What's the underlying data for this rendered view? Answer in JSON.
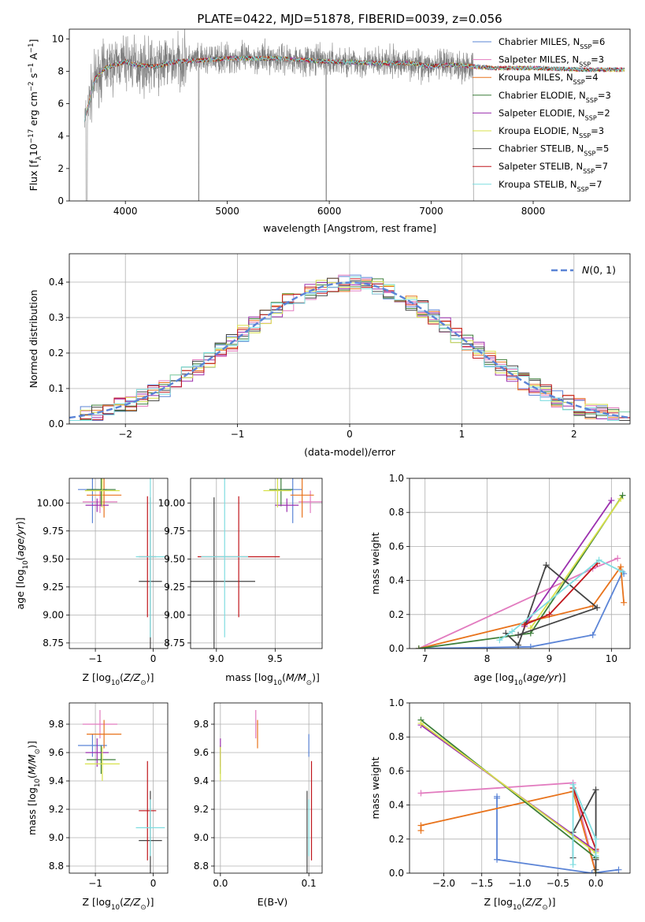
{
  "figure": {
    "title": "PLATE=0422, MJD=51878, FIBERID=0039, z=0.056"
  },
  "colors": {
    "Chabrier MILES": "#5b84d6",
    "Salpeter MILES": "#e27bbf",
    "Kroupa MILES": "#e8731c",
    "Chabrier ELODIE": "#3d7f3a",
    "Salpeter ELODIE": "#9b2fae",
    "Kroupa ELODIE": "#d8e14a",
    "Chabrier STELIB": "#444444",
    "Salpeter STELIB": "#c0161c",
    "Kroupa STELIB": "#7fdde0",
    "data": "#7f7f7f",
    "gaussian": "#5b84d6"
  },
  "chart_data": [
    {
      "id": "spectrum",
      "type": "line",
      "xlabel": "wavelength [Angstrom, rest frame]",
      "ylabel": "Flux [f_λ10^-17 erg cm^-2 s^-1 A^-1]",
      "xlim": [
        3450,
        8950
      ],
      "ylim": [
        0,
        10.6
      ],
      "xticks": [
        4000,
        5000,
        6000,
        7000,
        8000
      ],
      "yticks": [
        0,
        2,
        4,
        6,
        8,
        10
      ],
      "legend": "top-right",
      "legend_entries": [
        {
          "model": "Chabrier MILES",
          "nssp": "6"
        },
        {
          "model": "Salpeter MILES",
          "nssp": "3"
        },
        {
          "model": "Kroupa MILES",
          "nssp": "4"
        },
        {
          "model": "Chabrier ELODIE",
          "nssp": "3"
        },
        {
          "model": "Salpeter ELODIE",
          "nssp": "2"
        },
        {
          "model": "Kroupa ELODIE",
          "nssp": "3"
        },
        {
          "model": "Chabrier STELIB",
          "nssp": "5"
        },
        {
          "model": "Salpeter STELIB",
          "nssp": "7"
        },
        {
          "model": "Kroupa STELIB",
          "nssp": "7"
        }
      ],
      "continuum": [
        [
          3600,
          5.0
        ],
        [
          3700,
          7.5
        ],
        [
          3800,
          8.2
        ],
        [
          3900,
          8.4
        ],
        [
          4000,
          8.6
        ],
        [
          4100,
          8.4
        ],
        [
          4300,
          8.3
        ],
        [
          4500,
          8.6
        ],
        [
          4800,
          8.7
        ],
        [
          5000,
          8.8
        ],
        [
          5500,
          8.8
        ],
        [
          6000,
          8.6
        ],
        [
          6500,
          8.5
        ],
        [
          6800,
          8.5
        ],
        [
          7000,
          8.3
        ],
        [
          7200,
          8.4
        ],
        [
          7400,
          8.3
        ],
        [
          7600,
          8.2
        ],
        [
          8000,
          8.2
        ],
        [
          8500,
          8.1
        ]
      ],
      "data_range": [
        3600,
        7410
      ]
    },
    {
      "id": "residuals",
      "type": "histogram",
      "xlabel": "(data-model)/error",
      "ylabel": "Normed distribution",
      "xlim": [
        -2.5,
        2.5
      ],
      "ylim": [
        0,
        0.48
      ],
      "xticks": [
        -2,
        -1,
        0,
        1,
        2
      ],
      "yticks": [
        0.0,
        0.1,
        0.2,
        0.3,
        0.4
      ],
      "legend": "top-right",
      "reference_curve": "N(0,1)",
      "bin_width": 0.1
    },
    {
      "id": "age_vs_Z",
      "type": "errorbar",
      "xlabel": "Z [log10(Z/Z☉)]",
      "ylabel": "age [log10(age/yr)]",
      "xlim": [
        -1.45,
        0.25
      ],
      "ylim": [
        8.7,
        10.22
      ],
      "xticks": [
        -1,
        0
      ],
      "yticks": [
        8.75,
        9.0,
        9.25,
        9.5,
        9.75,
        10.0
      ],
      "points": [
        {
          "model": "Chabrier MILES",
          "x": -1.05,
          "xe": 0.25,
          "y": 10.12,
          "ye": 0.3
        },
        {
          "model": "Salpeter MILES",
          "x": -0.92,
          "xe": 0.3,
          "y": 10.01,
          "ye": 0.1
        },
        {
          "model": "Kroupa MILES",
          "x": -0.85,
          "xe": 0.3,
          "y": 10.07,
          "ye": 0.2
        },
        {
          "model": "Chabrier ELODIE",
          "x": -0.9,
          "xe": 0.25,
          "y": 10.12,
          "ye": 0.15
        },
        {
          "model": "Salpeter ELODIE",
          "x": -0.97,
          "xe": 0.2,
          "y": 9.98,
          "ye": 0.06
        },
        {
          "model": "Kroupa ELODIE",
          "x": -0.88,
          "xe": 0.3,
          "y": 10.11,
          "ye": 0.15
        },
        {
          "model": "Chabrier STELIB",
          "x": -0.05,
          "xe": 0.2,
          "y": 9.3,
          "ye": 0.75
        },
        {
          "model": "Salpeter STELIB",
          "x": -0.1,
          "xe": 0.15,
          "y": 9.52,
          "ye": 0.54
        },
        {
          "model": "Kroupa STELIB",
          "x": -0.05,
          "xe": 0.25,
          "y": 9.52,
          "ye": 0.72
        }
      ]
    },
    {
      "id": "age_vs_mass",
      "type": "errorbar",
      "xlabel": "mass [log10(M/M☉)]",
      "ylabel": "",
      "xlim": [
        8.78,
        9.9
      ],
      "ylim": [
        8.7,
        10.22
      ],
      "xticks": [
        9.0,
        9.5
      ],
      "yticks": [
        8.75,
        9.0,
        9.25,
        9.5,
        9.75,
        10.0
      ],
      "points": [
        {
          "model": "Chabrier MILES",
          "x": 9.65,
          "xe": 0.08,
          "y": 10.12,
          "ye": 0.3
        },
        {
          "model": "Salpeter MILES",
          "x": 9.8,
          "xe": 0.1,
          "y": 10.01,
          "ye": 0.1
        },
        {
          "model": "Kroupa MILES",
          "x": 9.73,
          "xe": 0.1,
          "y": 10.07,
          "ye": 0.2
        },
        {
          "model": "Chabrier ELODIE",
          "x": 9.55,
          "xe": 0.1,
          "y": 10.12,
          "ye": 0.15
        },
        {
          "model": "Salpeter ELODIE",
          "x": 9.6,
          "xe": 0.1,
          "y": 9.98,
          "ye": 0.06
        },
        {
          "model": "Kroupa ELODIE",
          "x": 9.52,
          "xe": 0.12,
          "y": 10.11,
          "ye": 0.15
        },
        {
          "model": "Chabrier STELIB",
          "x": 8.98,
          "xe": 0.35,
          "y": 9.3,
          "ye": 0.75
        },
        {
          "model": "Salpeter STELIB",
          "x": 9.19,
          "xe": 0.35,
          "y": 9.52,
          "ye": 0.54
        },
        {
          "model": "Kroupa STELIB",
          "x": 9.07,
          "xe": 0.2,
          "y": 9.52,
          "ye": 0.72
        }
      ]
    },
    {
      "id": "weight_vs_age",
      "type": "line",
      "xlabel": "age [log10(age/yr)]",
      "ylabel": "mass weight",
      "xlim": [
        6.75,
        10.3
      ],
      "ylim": [
        0,
        1
      ],
      "xticks": [
        7,
        8,
        9,
        10
      ],
      "yticks": [
        0.0,
        0.2,
        0.4,
        0.6,
        0.8,
        1.0
      ],
      "series": [
        {
          "model": "Chabrier MILES",
          "x": [
            6.9,
            8.7,
            9.7,
            10.18,
            10.2
          ],
          "y": [
            0.0,
            0.01,
            0.08,
            0.45,
            0.44
          ]
        },
        {
          "model": "Salpeter MILES",
          "x": [
            6.9,
            9.7,
            10.1
          ],
          "y": [
            0.0,
            0.47,
            0.53
          ]
        },
        {
          "model": "Kroupa MILES",
          "x": [
            6.9,
            9.7,
            10.15,
            10.2
          ],
          "y": [
            0.0,
            0.25,
            0.48,
            0.27
          ]
        },
        {
          "model": "Chabrier ELODIE",
          "x": [
            6.9,
            8.7,
            10.18
          ],
          "y": [
            0.0,
            0.09,
            0.9
          ]
        },
        {
          "model": "Salpeter ELODIE",
          "x": [
            8.6,
            10.0
          ],
          "y": [
            0.13,
            0.87
          ]
        },
        {
          "model": "Kroupa ELODIE",
          "x": [
            8.7,
            10.15
          ],
          "y": [
            0.12,
            0.88
          ]
        },
        {
          "model": "Chabrier STELIB",
          "x": [
            8.3,
            8.5,
            8.95,
            9.77,
            8.5
          ],
          "y": [
            0.09,
            0.02,
            0.49,
            0.24,
            0.08
          ]
        },
        {
          "model": "Salpeter STELIB",
          "x": [
            8.6,
            9.0,
            9.77
          ],
          "y": [
            0.14,
            0.2,
            0.5
          ]
        },
        {
          "model": "Kroupa STELIB",
          "x": [
            8.2,
            8.4,
            9.8,
            10.18
          ],
          "y": [
            0.05,
            0.1,
            0.52,
            0.45
          ]
        }
      ]
    },
    {
      "id": "mass_vs_Z",
      "type": "errorbar",
      "xlabel": "Z [log10(Z/Z☉)]",
      "ylabel": "mass [log10(M/M☉)]",
      "xlim": [
        -1.45,
        0.25
      ],
      "ylim": [
        8.75,
        9.95
      ],
      "xticks": [
        -1,
        0
      ],
      "yticks": [
        8.8,
        9.0,
        9.2,
        9.4,
        9.6,
        9.8
      ],
      "points": [
        {
          "model": "Chabrier MILES",
          "x": -1.05,
          "xe": 0.25,
          "y": 9.65,
          "ye": 0.08
        },
        {
          "model": "Salpeter MILES",
          "x": -0.92,
          "xe": 0.3,
          "y": 9.8,
          "ye": 0.1
        },
        {
          "model": "Kroupa MILES",
          "x": -0.85,
          "xe": 0.3,
          "y": 9.73,
          "ye": 0.1
        },
        {
          "model": "Chabrier ELODIE",
          "x": -0.9,
          "xe": 0.25,
          "y": 9.55,
          "ye": 0.1
        },
        {
          "model": "Salpeter ELODIE",
          "x": -0.97,
          "xe": 0.2,
          "y": 9.6,
          "ye": 0.1
        },
        {
          "model": "Kroupa ELODIE",
          "x": -0.88,
          "xe": 0.3,
          "y": 9.52,
          "ye": 0.12
        },
        {
          "model": "Chabrier STELIB",
          "x": -0.05,
          "xe": 0.2,
          "y": 8.98,
          "ye": 0.35
        },
        {
          "model": "Salpeter STELIB",
          "x": -0.1,
          "xe": 0.15,
          "y": 9.19,
          "ye": 0.35
        },
        {
          "model": "Kroupa STELIB",
          "x": -0.05,
          "xe": 0.25,
          "y": 9.07,
          "ye": 0.2
        }
      ]
    },
    {
      "id": "mass_vs_ebv",
      "type": "errorbar",
      "xlabel": "E(B-V)",
      "ylabel": "",
      "xlim": [
        -0.007,
        0.115
      ],
      "ylim": [
        8.75,
        9.95
      ],
      "xticks": [
        0.0,
        0.1
      ],
      "yticks": [
        8.8,
        9.0,
        9.2,
        9.4,
        9.6,
        9.8
      ],
      "points": [
        {
          "model": "Chabrier MILES",
          "x": 0.1,
          "y": 9.65,
          "ye": 0.08
        },
        {
          "model": "Salpeter MILES",
          "x": 0.04,
          "y": 9.8,
          "ye": 0.1
        },
        {
          "model": "Kroupa MILES",
          "x": 0.042,
          "y": 9.73,
          "ye": 0.1
        },
        {
          "model": "Chabrier ELODIE",
          "x": 0.0,
          "y": 9.55,
          "ye": 0.1
        },
        {
          "model": "Salpeter ELODIE",
          "x": 0.0,
          "y": 9.6,
          "ye": 0.1
        },
        {
          "model": "Kroupa ELODIE",
          "x": 0.0,
          "y": 9.52,
          "ye": 0.12
        },
        {
          "model": "Chabrier STELIB",
          "x": 0.098,
          "y": 8.98,
          "ye": 0.35
        },
        {
          "model": "Salpeter STELIB",
          "x": 0.103,
          "y": 9.19,
          "ye": 0.35
        },
        {
          "model": "Kroupa STELIB",
          "x": 0.1,
          "y": 9.07,
          "ye": 0.2
        }
      ]
    },
    {
      "id": "weight_vs_Z",
      "type": "line",
      "xlabel": "Z [log10(Z/Z☉)]",
      "ylabel": "mass weight",
      "xlim": [
        -2.45,
        0.45
      ],
      "ylim": [
        0,
        1
      ],
      "xticks": [
        -2.0,
        -1.5,
        -1.0,
        -0.5,
        0.0
      ],
      "yticks": [
        0.0,
        0.2,
        0.4,
        0.6,
        0.8,
        1.0
      ],
      "series": [
        {
          "model": "Chabrier MILES",
          "x": [
            -1.3,
            -1.3,
            -1.3,
            -0.05,
            0.3
          ],
          "y": [
            0.45,
            0.44,
            0.08,
            0.0,
            0.02
          ]
        },
        {
          "model": "Salpeter MILES",
          "x": [
            -2.3,
            -0.3,
            0.0
          ],
          "y": [
            0.47,
            0.53,
            0.0
          ]
        },
        {
          "model": "Kroupa MILES",
          "x": [
            -2.3,
            -2.3,
            -0.3,
            0.0
          ],
          "y": [
            0.25,
            0.28,
            0.48,
            0.0
          ]
        },
        {
          "model": "Chabrier ELODIE",
          "x": [
            -2.3,
            0.0,
            0.0
          ],
          "y": [
            0.9,
            0.09,
            0.0
          ]
        },
        {
          "model": "Salpeter ELODIE",
          "x": [
            -2.3,
            0.0
          ],
          "y": [
            0.87,
            0.13
          ]
        },
        {
          "model": "Kroupa ELODIE",
          "x": [
            -2.3,
            0.0
          ],
          "y": [
            0.88,
            0.12
          ]
        },
        {
          "model": "Chabrier STELIB",
          "x": [
            -0.3,
            -0.3,
            0.0,
            0.0,
            0.0
          ],
          "y": [
            0.09,
            0.24,
            0.49,
            0.02,
            0.08
          ]
        },
        {
          "model": "Salpeter STELIB",
          "x": [
            -0.3,
            0.0
          ],
          "y": [
            0.5,
            0.14
          ]
        },
        {
          "model": "Kroupa STELIB",
          "x": [
            -0.3,
            -0.3,
            0.0,
            0.0
          ],
          "y": [
            0.05,
            0.52,
            0.2,
            0.1
          ]
        }
      ]
    }
  ]
}
